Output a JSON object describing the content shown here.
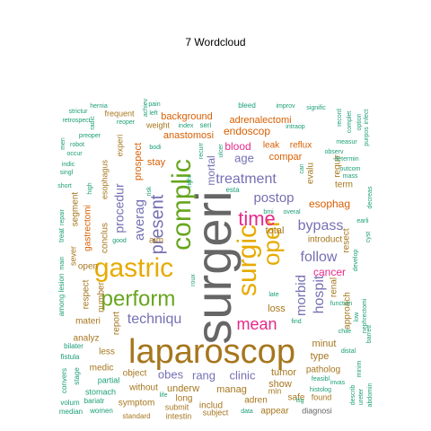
{
  "chart_data": {
    "type": "wordcloud",
    "title": "7  Wordcloud",
    "colors": {
      "teal": "#1b9e77",
      "orange": "#d95f02",
      "purple": "#7570b3",
      "pink": "#e7298a",
      "green": "#66a61e",
      "gold": "#e6ab02",
      "brown": "#a6761d",
      "gray": "#666666"
    },
    "words": [
      {
        "text": "surgeri",
        "color": "gray"
      },
      {
        "text": "laparoscop",
        "color": "brown"
      },
      {
        "text": "gastric",
        "color": "gold"
      },
      {
        "text": "surgic",
        "color": "gold"
      },
      {
        "text": "complic",
        "color": "green"
      },
      {
        "text": "perform",
        "color": "green"
      },
      {
        "text": "oper",
        "color": "gold"
      },
      {
        "text": "time",
        "color": "pink"
      },
      {
        "text": "mean",
        "color": "pink"
      },
      {
        "text": "present",
        "color": "purple"
      },
      {
        "text": "techniqu",
        "color": "purple"
      },
      {
        "text": "treatment",
        "color": "purple"
      },
      {
        "text": "follow",
        "color": "purple"
      },
      {
        "text": "bypass",
        "color": "purple"
      },
      {
        "text": "postop",
        "color": "purple"
      },
      {
        "text": "hospit",
        "color": "purple"
      },
      {
        "text": "morbid",
        "color": "purple"
      },
      {
        "text": "averag",
        "color": "purple"
      },
      {
        "text": "procedur",
        "color": "purple"
      },
      {
        "text": "obes",
        "color": "purple"
      },
      {
        "text": "rang",
        "color": "purple"
      },
      {
        "text": "clinic",
        "color": "purple"
      },
      {
        "text": "age",
        "color": "purple"
      },
      {
        "text": "mortal",
        "color": "purple"
      },
      {
        "text": "blood",
        "color": "pink"
      },
      {
        "text": "cancer",
        "color": "pink"
      },
      {
        "text": "endoscop",
        "color": "orange"
      },
      {
        "text": "esophag",
        "color": "orange"
      },
      {
        "text": "anastomosi",
        "color": "orange"
      },
      {
        "text": "stay",
        "color": "orange"
      },
      {
        "text": "prospect",
        "color": "orange"
      },
      {
        "text": "adrenalectomi",
        "color": "orange"
      },
      {
        "text": "background",
        "color": "orange"
      },
      {
        "text": "leak",
        "color": "orange"
      },
      {
        "text": "reflux",
        "color": "orange"
      },
      {
        "text": "compar",
        "color": "orange"
      },
      {
        "text": "total",
        "color": "brown"
      },
      {
        "text": "loss",
        "color": "brown"
      },
      {
        "text": "minut",
        "color": "brown"
      },
      {
        "text": "type",
        "color": "brown"
      },
      {
        "text": "tumor",
        "color": "brown"
      },
      {
        "text": "patholog",
        "color": "brown"
      },
      {
        "text": "show",
        "color": "brown"
      },
      {
        "text": "manag",
        "color": "brown"
      },
      {
        "text": "underw",
        "color": "brown"
      },
      {
        "text": "includ",
        "color": "brown"
      },
      {
        "text": "long",
        "color": "brown"
      },
      {
        "text": "symptom",
        "color": "brown"
      },
      {
        "text": "object",
        "color": "brown"
      },
      {
        "text": "medic",
        "color": "brown"
      },
      {
        "text": "less",
        "color": "brown"
      },
      {
        "text": "report",
        "color": "brown"
      },
      {
        "text": "analyz",
        "color": "brown"
      },
      {
        "text": "materi",
        "color": "brown"
      },
      {
        "text": "open",
        "color": "brown"
      },
      {
        "text": "gastrectomi",
        "color": "orange"
      },
      {
        "text": "conclus",
        "color": "brown"
      },
      {
        "text": "esophagus",
        "color": "brown"
      },
      {
        "text": "experi",
        "color": "brown"
      },
      {
        "text": "frequent",
        "color": "brown"
      },
      {
        "text": "weight",
        "color": "brown"
      },
      {
        "text": "requir",
        "color": "brown"
      },
      {
        "text": "evalu",
        "color": "brown"
      },
      {
        "text": "resect",
        "color": "brown"
      },
      {
        "text": "renal",
        "color": "brown"
      },
      {
        "text": "approach",
        "color": "brown"
      },
      {
        "text": "introduct",
        "color": "brown"
      },
      {
        "text": "term",
        "color": "brown"
      },
      {
        "text": "aim",
        "color": "brown"
      },
      {
        "text": "respect",
        "color": "brown"
      },
      {
        "text": "segment",
        "color": "brown"
      },
      {
        "text": "number",
        "color": "brown"
      },
      {
        "text": "sever",
        "color": "brown"
      },
      {
        "text": "adren",
        "color": "brown"
      },
      {
        "text": "min",
        "color": "brown"
      },
      {
        "text": "safe",
        "color": "brown"
      },
      {
        "text": "found",
        "color": "brown"
      },
      {
        "text": "appear",
        "color": "brown"
      },
      {
        "text": "diagnosi",
        "color": "gray"
      },
      {
        "text": "subject",
        "color": "brown"
      },
      {
        "text": "intestin",
        "color": "brown"
      },
      {
        "text": "submit",
        "color": "brown"
      },
      {
        "text": "standard",
        "color": "brown"
      },
      {
        "text": "without",
        "color": "brown"
      },
      {
        "text": "partial",
        "color": "teal"
      },
      {
        "text": "stomach",
        "color": "teal"
      },
      {
        "text": "bariatr",
        "color": "teal"
      },
      {
        "text": "median",
        "color": "teal"
      },
      {
        "text": "women",
        "color": "teal"
      },
      {
        "text": "volum",
        "color": "teal"
      },
      {
        "text": "convers",
        "color": "teal"
      },
      {
        "text": "stage",
        "color": "teal"
      },
      {
        "text": "fistula",
        "color": "teal"
      },
      {
        "text": "bilater",
        "color": "teal"
      },
      {
        "text": "among",
        "color": "teal"
      },
      {
        "text": "lesion",
        "color": "teal"
      },
      {
        "text": "main",
        "color": "teal"
      },
      {
        "text": "treat",
        "color": "teal"
      },
      {
        "text": "repair",
        "color": "teal"
      },
      {
        "text": "short",
        "color": "teal"
      },
      {
        "text": "singl",
        "color": "teal"
      },
      {
        "text": "indic",
        "color": "teal"
      },
      {
        "text": "occur",
        "color": "teal"
      },
      {
        "text": "robot",
        "color": "teal"
      },
      {
        "text": "men",
        "color": "teal"
      },
      {
        "text": "preoper",
        "color": "teal"
      },
      {
        "text": "strictur",
        "color": "teal"
      },
      {
        "text": "retrospect",
        "color": "teal"
      },
      {
        "text": "hernia",
        "color": "teal"
      },
      {
        "text": "radic",
        "color": "teal"
      },
      {
        "text": "reoper",
        "color": "teal"
      },
      {
        "text": "pain",
        "color": "teal"
      },
      {
        "text": "left",
        "color": "teal"
      },
      {
        "text": "achiev",
        "color": "teal"
      },
      {
        "text": "index",
        "color": "teal"
      },
      {
        "text": "seri",
        "color": "teal"
      },
      {
        "text": "bodi",
        "color": "teal"
      },
      {
        "text": "risk",
        "color": "teal"
      },
      {
        "text": "right",
        "color": "teal"
      },
      {
        "text": "recurr",
        "color": "teal"
      },
      {
        "text": "ulcer",
        "color": "teal"
      },
      {
        "text": "bleed",
        "color": "teal"
      },
      {
        "text": "improv",
        "color": "teal"
      },
      {
        "text": "signific",
        "color": "teal"
      },
      {
        "text": "intraop",
        "color": "teal"
      },
      {
        "text": "record",
        "color": "teal"
      },
      {
        "text": "complet",
        "color": "teal"
      },
      {
        "text": "option",
        "color": "teal"
      },
      {
        "text": "infect",
        "color": "teal"
      },
      {
        "text": "purpos",
        "color": "teal"
      },
      {
        "text": "measur",
        "color": "teal"
      },
      {
        "text": "observ",
        "color": "teal"
      },
      {
        "text": "determin",
        "color": "teal"
      },
      {
        "text": "outcom",
        "color": "teal"
      },
      {
        "text": "mass",
        "color": "teal"
      },
      {
        "text": "decreas",
        "color": "teal"
      },
      {
        "text": "can",
        "color": "teal"
      },
      {
        "text": "esta",
        "color": "teal"
      },
      {
        "text": "bmi",
        "color": "teal"
      },
      {
        "text": "overal",
        "color": "teal"
      },
      {
        "text": "earli",
        "color": "teal"
      },
      {
        "text": "develop",
        "color": "teal"
      },
      {
        "text": "cyst",
        "color": "teal"
      },
      {
        "text": "function",
        "color": "teal"
      },
      {
        "text": "chile",
        "color": "teal"
      },
      {
        "text": "barrett",
        "color": "teal"
      },
      {
        "text": "low",
        "color": "teal"
      },
      {
        "text": "nephrectomi",
        "color": "teal"
      },
      {
        "text": "distal",
        "color": "teal"
      },
      {
        "text": "invas",
        "color": "teal"
      },
      {
        "text": "feasibl",
        "color": "teal"
      },
      {
        "text": "histolog",
        "color": "teal"
      },
      {
        "text": "describ",
        "color": "teal"
      },
      {
        "text": "ureter",
        "color": "teal"
      },
      {
        "text": "minim",
        "color": "teal"
      },
      {
        "text": "abdomin",
        "color": "teal"
      },
      {
        "text": "data",
        "color": "teal"
      },
      {
        "text": "life",
        "color": "teal"
      },
      {
        "text": "late",
        "color": "teal"
      },
      {
        "text": "find",
        "color": "teal"
      },
      {
        "text": "roux",
        "color": "teal"
      },
      {
        "text": "lsg",
        "color": "teal"
      },
      {
        "text": "good",
        "color": "teal"
      },
      {
        "text": "high",
        "color": "teal"
      }
    ]
  }
}
